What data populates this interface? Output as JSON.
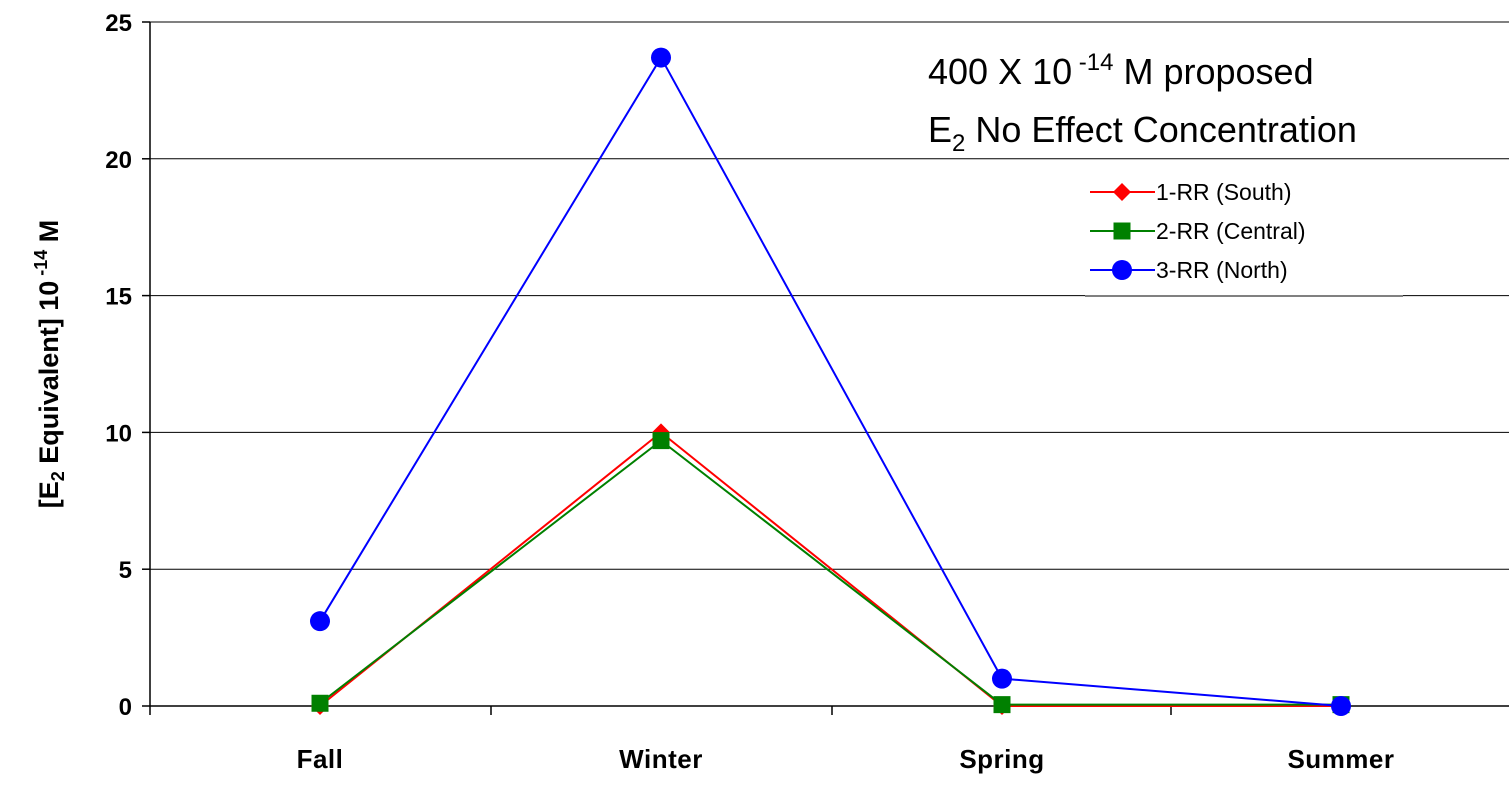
{
  "chart_data": {
    "type": "line",
    "categories": [
      "Fall",
      "Winter",
      "Spring",
      "Summer"
    ],
    "series": [
      {
        "name": "1-RR (South)",
        "values": [
          0.0,
          10.0,
          0.0,
          0.0
        ],
        "color": "#ff0000",
        "marker": "diamond"
      },
      {
        "name": "2-RR (Central)",
        "values": [
          0.1,
          9.7,
          0.05,
          0.05
        ],
        "color": "#008000",
        "marker": "square"
      },
      {
        "name": "3-RR (North)",
        "values": [
          3.1,
          23.7,
          1.0,
          0.0
        ],
        "color": "#0000ff",
        "marker": "circle"
      }
    ],
    "ylim": [
      0,
      25
    ],
    "yticks": [
      "0",
      "5",
      "10",
      "15",
      "20",
      "25"
    ],
    "ylabel": {
      "pre": "[E",
      "sub": "2",
      "mid": " Equivalent] 10",
      "sup": " -14",
      "post": " M"
    },
    "annotation": {
      "line1_pre": "400 X 10",
      "line1_sup": " -14",
      "line1_post": " M proposed",
      "line2_pre": "E",
      "line2_sub": "2",
      "line2_post": " No Effect Concentration"
    },
    "legend_position": "top-right",
    "grid": true
  }
}
